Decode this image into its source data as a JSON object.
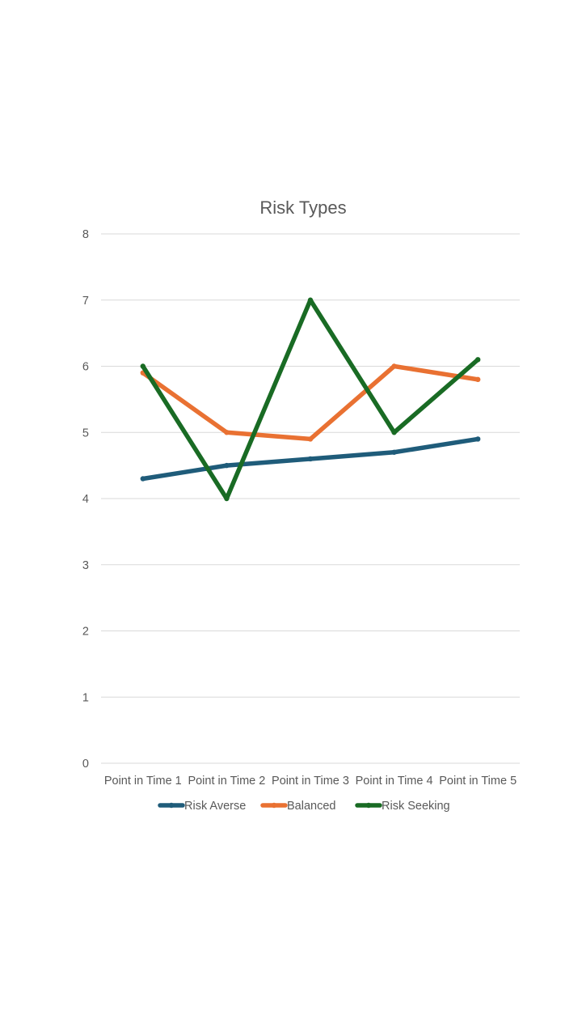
{
  "chart_data": {
    "type": "line",
    "title": "Risk Types",
    "xlabel": "",
    "ylabel": "",
    "categories": [
      "Point in Time 1",
      "Point in Time 2",
      "Point in Time 3",
      "Point in Time 4",
      "Point in Time 5"
    ],
    "y_ticks": [
      "0",
      "1",
      "2",
      "3",
      "4",
      "5",
      "6",
      "7",
      "8"
    ],
    "ylim": [
      0,
      8
    ],
    "grid": true,
    "legend_position": "bottom",
    "series": [
      {
        "name": "Risk Averse",
        "color": "#1F5C7A",
        "values": [
          4.3,
          4.5,
          4.6,
          4.7,
          4.9
        ]
      },
      {
        "name": "Balanced",
        "color": "#E97132",
        "values": [
          5.9,
          5.0,
          4.9,
          6.0,
          5.8
        ]
      },
      {
        "name": "Risk Seeking",
        "color": "#196B24",
        "values": [
          6.0,
          4.0,
          7.0,
          5.0,
          6.1
        ]
      }
    ]
  }
}
